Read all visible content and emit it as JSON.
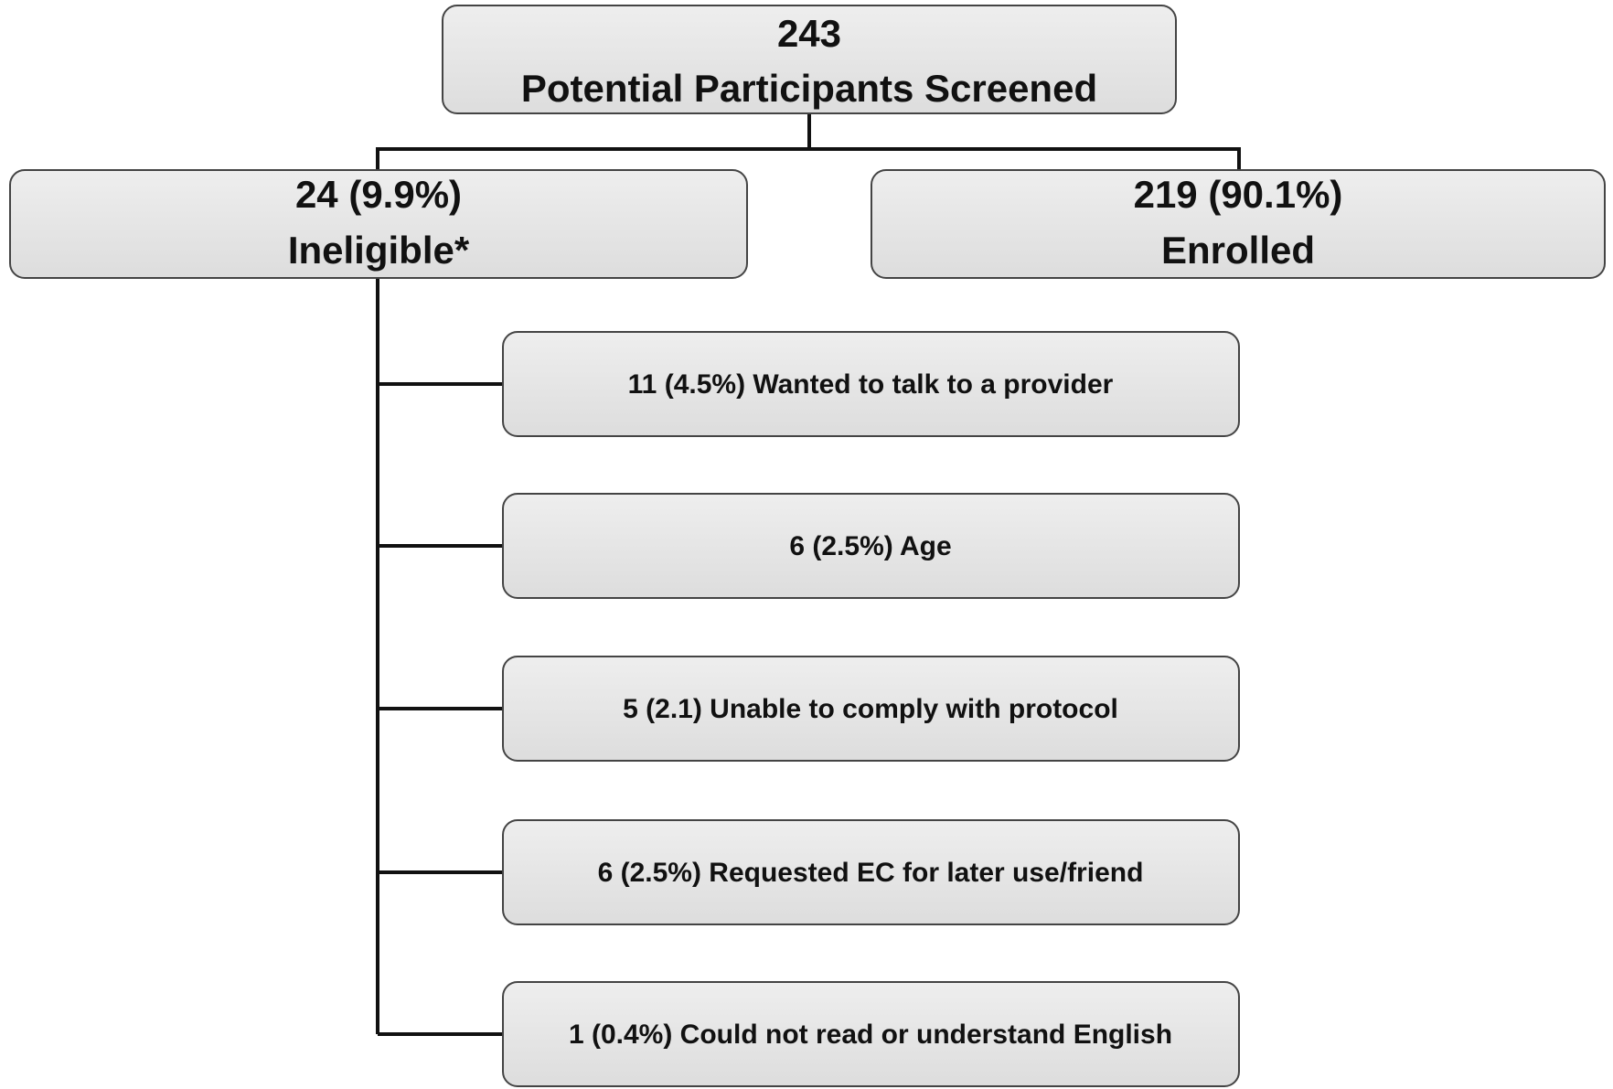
{
  "top": {
    "count": "243",
    "label": "Potential Participants Screened"
  },
  "branches": [
    {
      "count": "24 (9.9%)",
      "label": "Ineligible*"
    },
    {
      "count": "219 (90.1%)",
      "label": "Enrolled"
    }
  ],
  "reasons": [
    "11 (4.5%) Wanted to talk to a provider",
    "6 (2.5%) Age",
    "5 (2.1) Unable to comply with protocol",
    "6 (2.5%) Requested EC for later use/friend",
    "1 (0.4%) Could not read or understand English"
  ]
}
